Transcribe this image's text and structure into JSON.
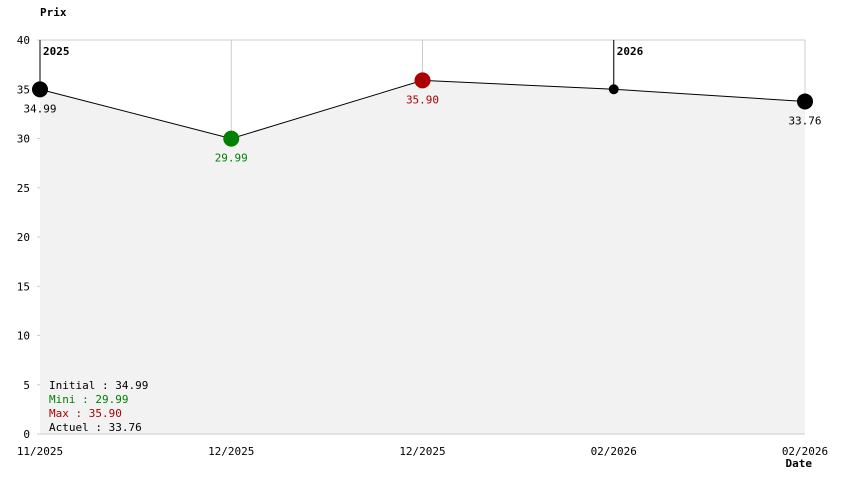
{
  "chart_data": {
    "type": "line",
    "y_label": "Prix",
    "x_label": "Date",
    "categories": [
      "11/2025",
      "12/2025",
      "12/2025",
      "02/2026",
      "02/2026"
    ],
    "values": [
      34.99,
      29.99,
      35.9,
      35,
      33.76
    ],
    "value_labels": [
      "34.99",
      "29.99",
      "35.90",
      null,
      "33.76"
    ],
    "point_colors": [
      "#000000",
      "#008000",
      "#aa0000",
      "#000000",
      "#000000"
    ],
    "line_color": "#000000",
    "fill_color": "#f2f2f2",
    "ylim": [
      0,
      40
    ],
    "yticks": [
      0,
      5,
      10,
      15,
      20,
      25,
      30,
      35,
      40
    ],
    "year_markers": [
      {
        "label": "2025",
        "index": 0
      },
      {
        "label": "2026",
        "index": 3
      }
    ],
    "annotations": [
      {
        "text": "Initial : 34.99",
        "color": "#000000"
      },
      {
        "text": "Mini : 29.99",
        "color": "#008000"
      },
      {
        "text": "Max : 35.90",
        "color": "#aa0000"
      },
      {
        "text": "Actuel : 33.76",
        "color": "#000000"
      }
    ]
  }
}
